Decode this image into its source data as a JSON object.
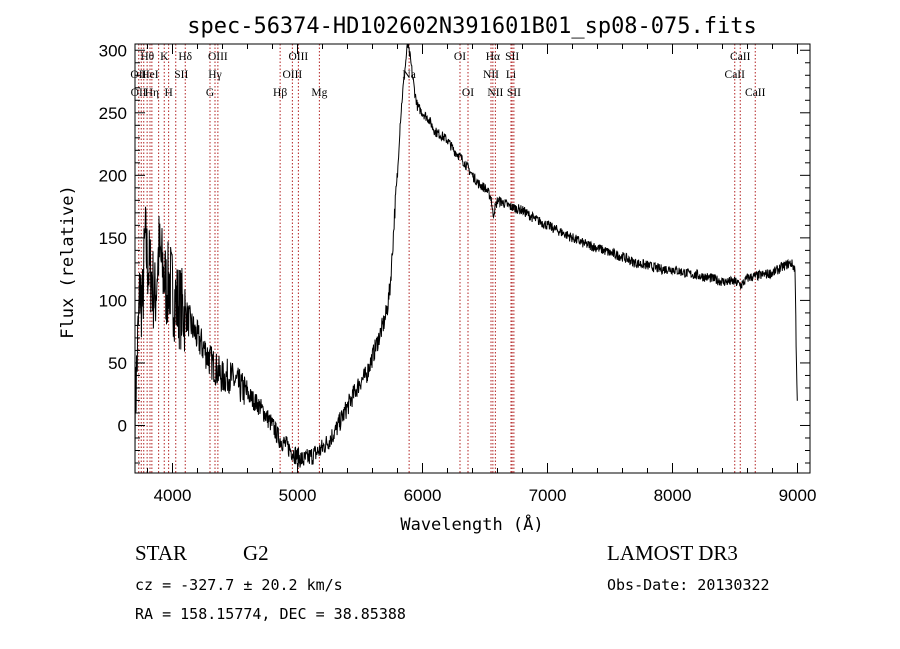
{
  "chart_data": {
    "type": "line",
    "title": "spec-56374-HD102602N391601B01_sp08-075.fits",
    "xlabel": "Wavelength (Å)",
    "ylabel": "Flux (relative)",
    "xlim": [
      3700,
      9100
    ],
    "ylim": [
      -38,
      305
    ],
    "xticks": [
      4000,
      5000,
      6000,
      7000,
      8000,
      9000
    ],
    "yticks": [
      0,
      50,
      100,
      150,
      200,
      250,
      300
    ],
    "spectrum": {
      "name": "flux",
      "x": [
        3700,
        3720,
        3740,
        3760,
        3780,
        3800,
        3830,
        3860,
        3890,
        3920,
        3950,
        3980,
        4020,
        4060,
        4100,
        4150,
        4200,
        4250,
        4300,
        4350,
        4400,
        4450,
        4500,
        4600,
        4700,
        4800,
        4850,
        4900,
        4950,
        5000,
        5050,
        5100,
        5150,
        5200,
        5250,
        5300,
        5350,
        5400,
        5450,
        5500,
        5550,
        5600,
        5650,
        5700,
        5720,
        5740,
        5760,
        5780,
        5800,
        5820,
        5840,
        5860,
        5880,
        5900,
        5920,
        5940,
        5960,
        6000,
        6050,
        6100,
        6150,
        6200,
        6250,
        6300,
        6350,
        6400,
        6450,
        6500,
        6550,
        6563,
        6600,
        6650,
        6700,
        6800,
        6900,
        7000,
        7100,
        7200,
        7300,
        7400,
        7500,
        7600,
        7700,
        7800,
        7900,
        8000,
        8100,
        8200,
        8300,
        8400,
        8500,
        8550,
        8600,
        8700,
        8800,
        8900,
        8950,
        8980,
        8990,
        9000
      ],
      "y": [
        10,
        60,
        110,
        95,
        150,
        130,
        120,
        100,
        140,
        125,
        110,
        115,
        100,
        95,
        90,
        80,
        70,
        62,
        52,
        45,
        38,
        40,
        35,
        25,
        15,
        0,
        -10,
        -15,
        -20,
        -25,
        -28,
        -25,
        -22,
        -18,
        -12,
        -5,
        5,
        15,
        25,
        35,
        40,
        55,
        70,
        85,
        95,
        110,
        140,
        175,
        200,
        240,
        265,
        285,
        305,
        295,
        280,
        265,
        255,
        250,
        245,
        235,
        232,
        228,
        220,
        215,
        208,
        200,
        193,
        190,
        182,
        168,
        180,
        178,
        175,
        172,
        165,
        160,
        155,
        150,
        145,
        142,
        138,
        135,
        130,
        128,
        125,
        125,
        122,
        120,
        118,
        115,
        115,
        112,
        118,
        120,
        122,
        128,
        130,
        125,
        60,
        10
      ]
    },
    "line_markers": {
      "wavelengths": [
        3730,
        3750,
        3770,
        3797,
        3820,
        3835,
        3889,
        3934,
        3969,
        4026,
        4102,
        4300,
        4340,
        4363,
        4861,
        4959,
        5007,
        5175,
        5893,
        6300,
        6364,
        6548,
        6563,
        6583,
        6708,
        6717,
        6731,
        8498,
        8542,
        8662
      ],
      "labels": [
        {
          "text": "OII",
          "wl": 3727,
          "row": 2
        },
        {
          "text": "OII",
          "wl": 3729,
          "row": 3
        },
        {
          "text": "Hθ",
          "wl": 3798,
          "row": 1
        },
        {
          "text": "HeI",
          "wl": 3820,
          "row": 2
        },
        {
          "text": "Hη",
          "wl": 3835,
          "row": 3
        },
        {
          "text": "K",
          "wl": 3934,
          "row": 1
        },
        {
          "text": "SII",
          "wl": 4070,
          "row": 2
        },
        {
          "text": "H",
          "wl": 3969,
          "row": 3
        },
        {
          "text": "Hδ",
          "wl": 4102,
          "row": 1
        },
        {
          "text": "OIII",
          "wl": 4363,
          "row": 1
        },
        {
          "text": "Hγ",
          "wl": 4340,
          "row": 2
        },
        {
          "text": "G",
          "wl": 4300,
          "row": 3
        },
        {
          "text": "Hβ",
          "wl": 4861,
          "row": 3
        },
        {
          "text": "OIII",
          "wl": 5007,
          "row": 1
        },
        {
          "text": "OIII",
          "wl": 4959,
          "row": 2
        },
        {
          "text": "Mg",
          "wl": 5175,
          "row": 3
        },
        {
          "text": "Na",
          "wl": 5893,
          "row": 2
        },
        {
          "text": "OI",
          "wl": 6300,
          "row": 1
        },
        {
          "text": "OI",
          "wl": 6364,
          "row": 3
        },
        {
          "text": "Hα",
          "wl": 6563,
          "row": 1
        },
        {
          "text": "SII",
          "wl": 6717,
          "row": 1
        },
        {
          "text": "NII",
          "wl": 6548,
          "row": 2
        },
        {
          "text": "Li",
          "wl": 6708,
          "row": 2
        },
        {
          "text": "NII",
          "wl": 6583,
          "row": 3
        },
        {
          "text": "SII",
          "wl": 6731,
          "row": 3
        },
        {
          "text": "CaII",
          "wl": 8542,
          "row": 1
        },
        {
          "text": "CaII",
          "wl": 8498,
          "row": 2
        },
        {
          "text": "CaII",
          "wl": 8662,
          "row": 3
        }
      ]
    }
  },
  "info": {
    "object_class": "STAR",
    "subclass": "G2",
    "survey": "LAMOST DR3",
    "velocity": "cz = -327.7 ± 20.2 km/s",
    "obs_date": "Obs-Date: 20130322",
    "coords": "RA = 158.15774, DEC =  38.85388"
  },
  "colors": {
    "marker": "#b22222",
    "spectrum": "#000000"
  }
}
